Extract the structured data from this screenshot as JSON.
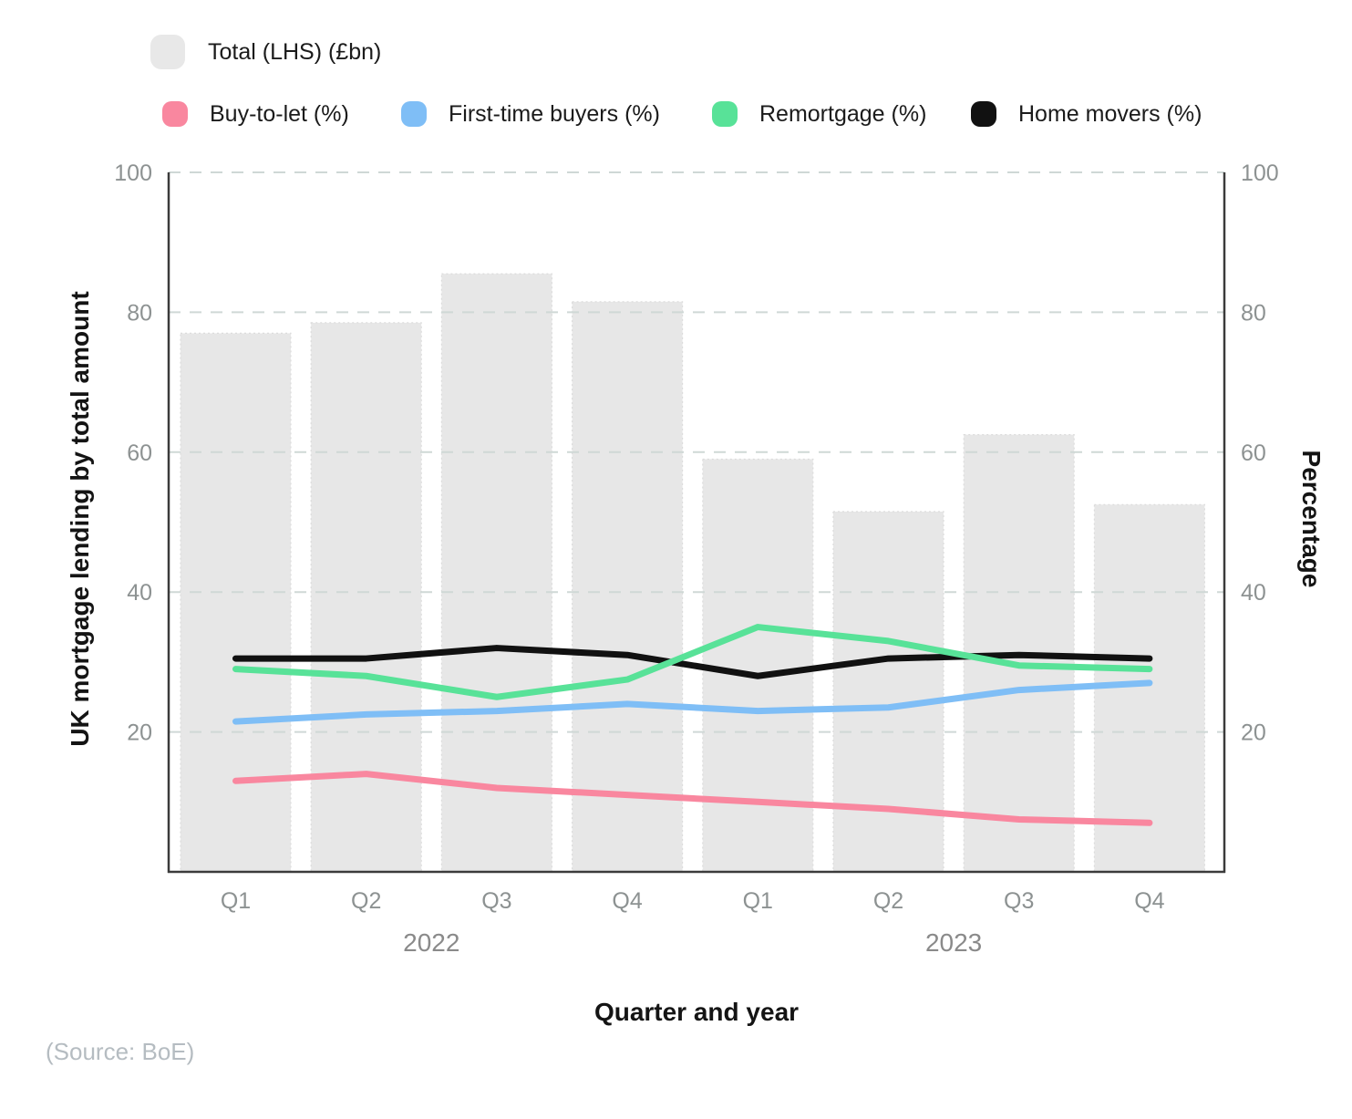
{
  "legend": {
    "row1": [
      {
        "label": "Total (LHS) (£bn)",
        "color": "#e8e8e8"
      }
    ],
    "row2": [
      {
        "label": "Buy-to-let (%)",
        "color": "#f9879f"
      },
      {
        "label": "First-time buyers (%)",
        "color": "#7fbef6"
      },
      {
        "label": "Remortgage (%)",
        "color": "#58e298"
      },
      {
        "label": "Home movers (%)",
        "color": "#111111"
      }
    ]
  },
  "chart_data": {
    "type": "combo-bar-line",
    "categories": [
      "Q1",
      "Q2",
      "Q3",
      "Q4",
      "Q1",
      "Q2",
      "Q3",
      "Q4"
    ],
    "year_groups": [
      {
        "label": "2022",
        "from": 0,
        "to": 3
      },
      {
        "label": "2023",
        "from": 4,
        "to": 7
      }
    ],
    "bar_series": {
      "name": "Total (LHS) (£bn)",
      "values": [
        77,
        78.5,
        85.5,
        81.5,
        59,
        51.5,
        62.5,
        52.5
      ],
      "color": "#e7e7e7",
      "axis": "left"
    },
    "line_series": [
      {
        "name": "Buy-to-let (%)",
        "values": [
          13,
          14,
          12,
          11,
          10,
          9,
          7.5,
          7
        ],
        "color": "#f9879f"
      },
      {
        "name": "First-time buyers (%)",
        "values": [
          21.5,
          22.5,
          23,
          24,
          23,
          23.5,
          26,
          27
        ],
        "color": "#7fbef6"
      },
      {
        "name": "Home movers (%)",
        "values": [
          30.5,
          30.5,
          32,
          31,
          28,
          30.5,
          31,
          30.5
        ],
        "color": "#111111"
      },
      {
        "name": "Remortgage (%)",
        "values": [
          29,
          28,
          25,
          27.5,
          35,
          33,
          29.5,
          29
        ],
        "color": "#58e298"
      }
    ],
    "left_axis": {
      "title": "UK mortgage lending by total amount",
      "ticks": [
        20,
        40,
        60,
        80,
        100
      ],
      "range": [
        0,
        100
      ]
    },
    "right_axis": {
      "title": "Percentage",
      "ticks": [
        20,
        40,
        60,
        80,
        100
      ],
      "range": [
        0,
        100
      ]
    },
    "x_axis": {
      "title": "Quarter and year"
    },
    "grid": "horizontal-dashed",
    "legend_position": "top-left"
  },
  "colors": {
    "grid_line": "#cfd8d6",
    "axis_line": "#3b3b3b",
    "tick_label": "#8d9292",
    "year_label": "#8a8a8a",
    "bar_border": "#dcdcdc"
  },
  "source": "(Source: BoE)"
}
